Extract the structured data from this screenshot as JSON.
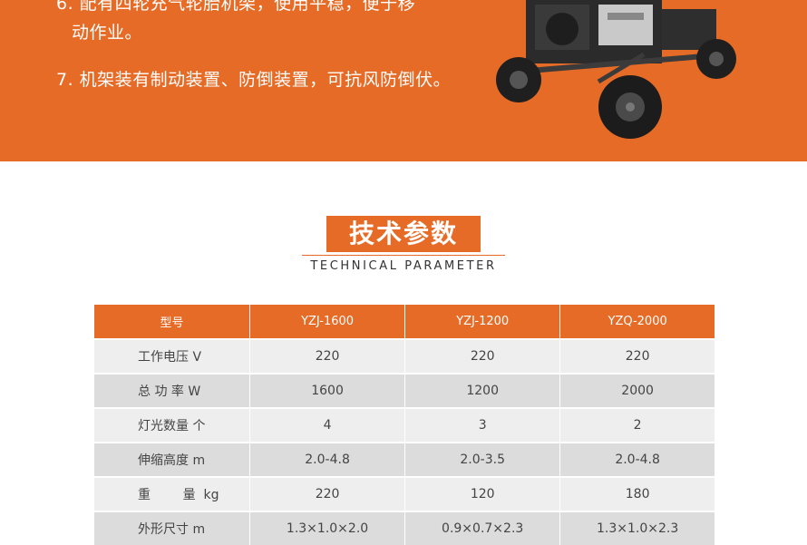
{
  "banner": {
    "feature6_line1": "6. 配有四轮充气轮胎机架，使用平稳，便于移",
    "feature6_line2": "动作业。",
    "feature7": "7. 机架装有制动装置、防倒装置，可抗风防倒伏。"
  },
  "section": {
    "title": "技术参数",
    "subtitle": "TECHNICAL PARAMETER"
  },
  "colors": {
    "accent": "#e66b26",
    "row_light": "#eeeeee",
    "row_dark": "#dcdcdc"
  },
  "table": {
    "headers": [
      "型号",
      "YZJ-1600",
      "YZJ-1200",
      "YZQ-2000"
    ],
    "rows": [
      [
        "工作电压  V",
        "220",
        "220",
        "220"
      ],
      [
        "总  功  率  W",
        "1600",
        "1200",
        "2000"
      ],
      [
        "灯光数量  个",
        "4",
        "3",
        "2"
      ],
      [
        "伸缩高度  m",
        "2.0-4.8",
        "2.0-3.5",
        "2.0-4.8"
      ],
      [
        "重        量  kg",
        "220",
        "120",
        "180"
      ],
      [
        "外形尺寸  m",
        "1.3×1.0×2.0",
        "0.9×0.7×2.3",
        "1.3×1.0×2.3"
      ]
    ]
  }
}
